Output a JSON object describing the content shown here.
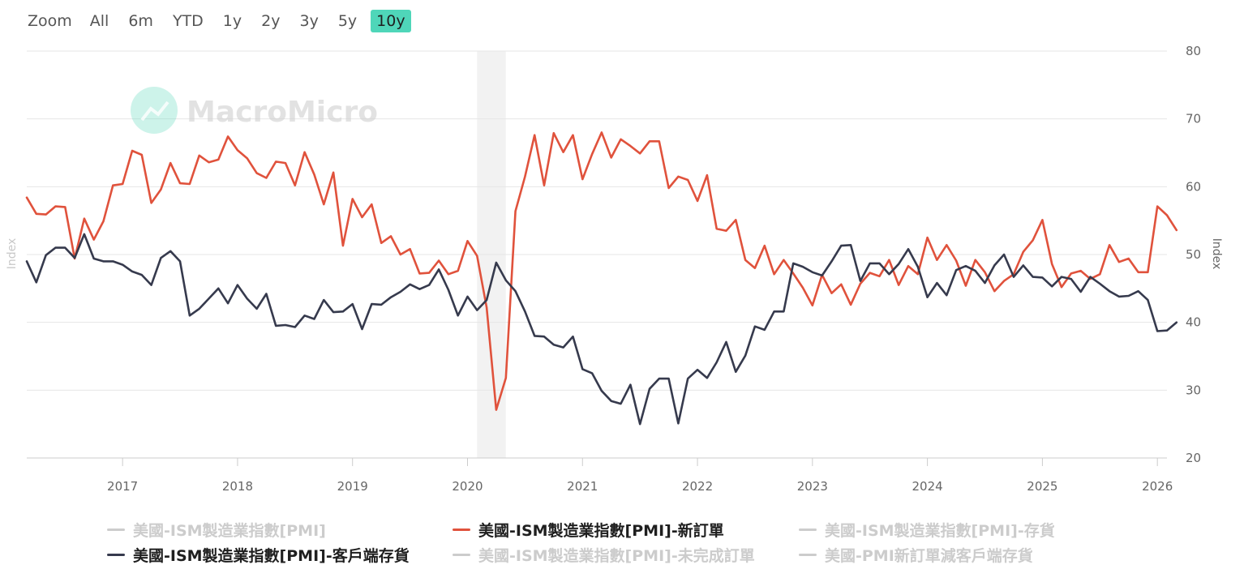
{
  "zoom": {
    "label": "Zoom",
    "buttons": [
      "All",
      "6m",
      "YTD",
      "1y",
      "2y",
      "3y",
      "5y",
      "10y"
    ],
    "active": "10y"
  },
  "watermark": "MacroMicro",
  "chart_data": {
    "type": "line",
    "x_axis": {
      "range": [
        "2016-03",
        "2026-02"
      ],
      "tick_labels": [
        "2017",
        "2018",
        "2019",
        "2020",
        "2021",
        "2022",
        "2023",
        "2024",
        "2025",
        "2026"
      ]
    },
    "y_axis": {
      "ylabel_left": "Index",
      "ylabel_right": "Index",
      "ylim": [
        20,
        80
      ],
      "tick_labels": [
        "20",
        "30",
        "40",
        "50",
        "60",
        "70",
        "80"
      ]
    },
    "grid": true,
    "legend_position": "bottom",
    "recession_shading": {
      "start": "2020-02",
      "end": "2020-04"
    },
    "colors": {
      "new_orders": "#e0523c",
      "customers_inventories": "#363a4d",
      "hidden": "#cccccc",
      "active_button": "#4fd6b9"
    },
    "legend": [
      {
        "name": "美國-ISM製造業指數[PMI]",
        "visible": false
      },
      {
        "name": "美國-ISM製造業指數[PMI]-新訂單",
        "visible": true
      },
      {
        "name": "美國-ISM製造業指數[PMI]-存貨",
        "visible": false
      },
      {
        "name": "美國-ISM製造業指數[PMI]-客戶端存貨",
        "visible": true
      },
      {
        "name": "美國-ISM製造業指數[PMI]-未完成訂單",
        "visible": false
      },
      {
        "name": "美國-PMI新訂單減客戶端存貨",
        "visible": false
      }
    ],
    "series": [
      {
        "name": "美國-ISM製造業指數[PMI]-新訂單",
        "start": "2016-03",
        "values": [
          58.4,
          56.0,
          55.9,
          57.1,
          57.0,
          49.4,
          55.3,
          52.2,
          54.9,
          60.2,
          60.4,
          65.3,
          64.7,
          57.6,
          59.6,
          63.5,
          60.5,
          60.4,
          64.6,
          63.6,
          64.0,
          67.4,
          65.4,
          64.2,
          62.0,
          61.3,
          63.7,
          63.5,
          60.2,
          65.1,
          61.8,
          57.4,
          62.1,
          51.3,
          58.2,
          55.5,
          57.4,
          51.7,
          52.7,
          50.0,
          50.8,
          47.2,
          47.3,
          49.1,
          47.1,
          47.6,
          52.0,
          49.8,
          42.2,
          27.1,
          31.8,
          56.4,
          61.5,
          67.6,
          60.2,
          67.9,
          65.1,
          67.6,
          61.1,
          64.8,
          68.0,
          64.3,
          67.0,
          66.0,
          64.9,
          66.7,
          66.7,
          59.8,
          61.5,
          61.0,
          57.9,
          61.7,
          53.8,
          53.5,
          55.1,
          49.2,
          48.0,
          51.3,
          47.1,
          49.2,
          47.2,
          45.1,
          42.5,
          47.0,
          44.3,
          45.6,
          42.6,
          45.7,
          47.3,
          46.8,
          49.2,
          45.5,
          48.3,
          47.1,
          52.5,
          49.2,
          51.4,
          49.1,
          45.4,
          49.2,
          47.4,
          44.6,
          46.1,
          47.1,
          50.4,
          52.1,
          55.1,
          48.6,
          45.2,
          47.2,
          47.6,
          46.4,
          47.1,
          51.4,
          48.9,
          49.4,
          47.4,
          47.4,
          57.1,
          55.8,
          53.6
        ]
      },
      {
        "name": "美國-ISM製造業指數[PMI]-客戶端存貨",
        "start": "2016-03",
        "values": [
          49.0,
          45.9,
          49.9,
          51.0,
          51.0,
          49.5,
          53.0,
          49.4,
          49.0,
          49.0,
          48.5,
          47.5,
          47.0,
          45.5,
          49.5,
          50.5,
          49.0,
          41.0,
          42.0,
          43.5,
          45.0,
          42.8,
          45.5,
          43.5,
          42.0,
          44.2,
          39.5,
          39.6,
          39.3,
          41.0,
          40.5,
          43.3,
          41.5,
          41.6,
          42.7,
          39.0,
          42.7,
          42.6,
          43.7,
          44.5,
          45.6,
          44.9,
          45.5,
          47.8,
          44.8,
          41.0,
          43.8,
          41.8,
          43.3,
          48.8,
          46.2,
          44.6,
          41.6,
          38.0,
          37.9,
          36.7,
          36.3,
          37.9,
          33.1,
          32.5,
          29.9,
          28.4,
          28.0,
          30.8,
          25.0,
          30.2,
          31.7,
          31.7,
          25.1,
          31.7,
          33.0,
          31.8,
          34.1,
          37.1,
          32.7,
          35.1,
          39.4,
          38.9,
          41.6,
          41.6,
          48.7,
          48.2,
          47.4,
          46.9,
          49.0,
          51.3,
          51.4,
          46.1,
          48.7,
          48.7,
          47.1,
          48.6,
          50.8,
          48.2,
          43.7,
          45.8,
          44.0,
          47.7,
          48.3,
          47.6,
          45.8,
          48.4,
          50.0,
          46.7,
          48.4,
          46.7,
          46.6,
          45.3,
          46.7,
          46.4,
          44.5,
          46.7,
          45.7,
          44.6,
          43.8,
          43.9,
          44.6,
          43.3,
          38.7,
          38.8,
          40.0
        ]
      }
    ]
  }
}
